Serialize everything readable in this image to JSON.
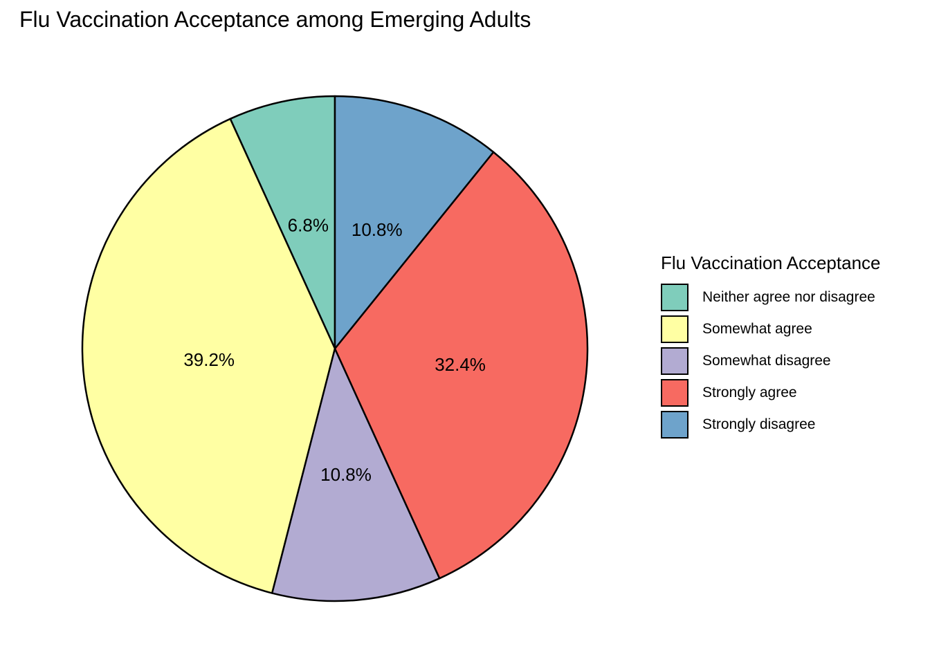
{
  "chart_data": {
    "type": "pie",
    "title": "Flu Vaccination Acceptance among Emerging Adults",
    "legend": {
      "title": "Flu Vaccination Acceptance",
      "placement": "right"
    },
    "start": "12 o'clock",
    "direction": "counterclockwise",
    "slices": [
      {
        "label": "Neither agree nor disagree",
        "value": 6.8,
        "display": "6.8%",
        "color": "#7FCDBB"
      },
      {
        "label": "Somewhat agree",
        "value": 39.2,
        "display": "39.2%",
        "color": "#FFFFA3"
      },
      {
        "label": "Somewhat disagree",
        "value": 10.8,
        "display": "10.8%",
        "color": "#B2ABD2"
      },
      {
        "label": "Strongly agree",
        "value": 32.4,
        "display": "32.4%",
        "color": "#F76A61"
      },
      {
        "label": "Strongly disagree",
        "value": 10.8,
        "display": "10.8%",
        "color": "#6EA3CB"
      }
    ]
  }
}
